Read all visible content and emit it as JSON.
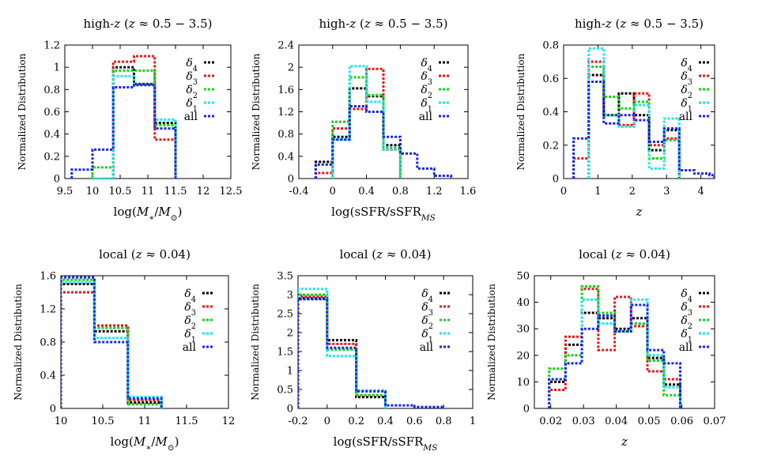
{
  "chart_data": [
    {
      "type": "histogram",
      "title": "high-z (z ≈ 0.5 − 3.5)",
      "xlabel": "log(M*/M⊙)",
      "ylabel": "Normalized Distribution",
      "xlim": [
        9.5,
        12.5
      ],
      "ylim": [
        0,
        1.2
      ],
      "xticks": [
        9.5,
        10,
        10.5,
        11,
        11.5,
        12,
        12.5
      ],
      "xtick_labels": [
        "9.5",
        "10",
        "10.5",
        "11",
        "11.5",
        "12",
        "12.5"
      ],
      "yticks": [
        0,
        0.2,
        0.4,
        0.6,
        0.8,
        1,
        1.2
      ],
      "ytick_labels": [
        "0",
        "0.2",
        "0.4",
        "0.6",
        "0.8",
        "1",
        "1.2"
      ],
      "series": [
        {
          "name": "δ4",
          "bins": [
            10.0,
            10.375,
            10.75,
            11.125,
            11.5
          ],
          "values": [
            0.0,
            1.0,
            0.85,
            0.5
          ]
        },
        {
          "name": "δ3",
          "bins": [
            10.0,
            10.375,
            10.75,
            11.125,
            11.5
          ],
          "values": [
            0.0,
            1.05,
            1.1,
            0.35
          ]
        },
        {
          "name": "δ2",
          "bins": [
            10.0,
            10.375,
            10.75,
            11.125,
            11.5
          ],
          "values": [
            0.1,
            0.97,
            0.97,
            0.48
          ]
        },
        {
          "name": "δ1",
          "bins": [
            10.0,
            10.375,
            10.75,
            11.125,
            11.5
          ],
          "values": [
            0.0,
            0.92,
            0.85,
            0.53
          ]
        },
        {
          "name": "all",
          "bins": [
            9.625,
            10.0,
            10.375,
            10.75,
            11.125,
            11.5
          ],
          "values": [
            0.08,
            0.26,
            0.82,
            0.84,
            0.45
          ]
        }
      ]
    },
    {
      "type": "histogram",
      "title": "high-z (z ≈ 0.5 − 3.5)",
      "xlabel": "log(sSFR/sSFR_MS)",
      "ylabel": "Normalized Distribution",
      "xlim": [
        -0.4,
        1.6
      ],
      "ylim": [
        0,
        2.4
      ],
      "xticks": [
        -0.4,
        0,
        0.4,
        0.8,
        1.2,
        1.6
      ],
      "xtick_labels": [
        "-0.4",
        "0",
        "0.4",
        "0.8",
        "1.2",
        "1.6"
      ],
      "yticks": [
        0,
        0.4,
        0.8,
        1.2,
        1.6,
        2,
        2.4
      ],
      "ytick_labels": [
        "0",
        "0.4",
        "0.8",
        "1.2",
        "1.6",
        "2",
        "2.4"
      ],
      "series": [
        {
          "name": "δ4",
          "bins": [
            -0.2,
            0,
            0.2,
            0.4,
            0.6,
            0.8
          ],
          "values": [
            0.3,
            0.75,
            1.62,
            1.48,
            0.6
          ]
        },
        {
          "name": "δ3",
          "bins": [
            -0.2,
            0,
            0.2,
            0.4,
            0.6,
            0.8
          ],
          "values": [
            0.1,
            0.9,
            1.25,
            1.97,
            0.52
          ]
        },
        {
          "name": "δ2",
          "bins": [
            0,
            0.2,
            0.4,
            0.6,
            0.8
          ],
          "values": [
            1.02,
            1.82,
            1.5,
            0.55
          ]
        },
        {
          "name": "δ1",
          "bins": [
            0,
            0.2,
            0.4,
            0.6,
            0.8
          ],
          "values": [
            0.7,
            2.02,
            1.38,
            0.52
          ]
        },
        {
          "name": "all",
          "bins": [
            -0.2,
            0,
            0.2,
            0.4,
            0.6,
            0.8,
            1.0,
            1.2,
            1.4
          ],
          "values": [
            0.25,
            0.7,
            1.3,
            1.2,
            0.75,
            0.45,
            0.18,
            0.05
          ]
        }
      ]
    },
    {
      "type": "histogram",
      "title": "high-z (z ≈ 0.5 − 3.5)",
      "xlabel": "z",
      "ylabel": "Normalized Distribution",
      "xlim": [
        0,
        4.4
      ],
      "ylim": [
        0,
        0.8
      ],
      "xticks": [
        0,
        1,
        2,
        3,
        4
      ],
      "xtick_labels": [
        "0",
        "1",
        "2",
        "3",
        "4"
      ],
      "yticks": [
        0,
        0.2,
        0.4,
        0.6,
        0.8
      ],
      "ytick_labels": [
        "0",
        "0.2",
        "0.4",
        "0.6",
        "0.8"
      ],
      "series": [
        {
          "name": "δ4",
          "bins": [
            0.73,
            1.17,
            1.61,
            2.05,
            2.49,
            2.93,
            3.37
          ],
          "values": [
            0.62,
            0.38,
            0.51,
            0.38,
            0.17,
            0.29
          ]
        },
        {
          "name": "δ3",
          "bins": [
            0.29,
            0.73,
            1.17,
            1.61,
            2.05,
            2.49,
            2.93,
            3.37
          ],
          "values": [
            0.12,
            0.7,
            0.38,
            0.32,
            0.51,
            0.2,
            0.24
          ]
        },
        {
          "name": "δ2",
          "bins": [
            0.73,
            1.17,
            1.61,
            2.05,
            2.49,
            2.93,
            3.37
          ],
          "values": [
            0.67,
            0.49,
            0.42,
            0.46,
            0.12,
            0.23
          ]
        },
        {
          "name": "δ1",
          "bins": [
            0.73,
            1.17,
            1.61,
            2.05,
            2.49,
            2.93,
            3.37
          ],
          "values": [
            0.78,
            0.38,
            0.31,
            0.44,
            0.06,
            0.36
          ]
        },
        {
          "name": "all",
          "bins": [
            0.29,
            0.73,
            1.17,
            1.61,
            2.05,
            2.49,
            2.93,
            3.37,
            3.81,
            4.25,
            4.4
          ],
          "values": [
            0.24,
            0.58,
            0.33,
            0.38,
            0.35,
            0.22,
            0.3,
            0.05,
            0.03,
            0.02
          ]
        }
      ]
    },
    {
      "type": "histogram",
      "title": "local (z ≈ 0.04)",
      "xlabel": "log(M*/M⊙)",
      "ylabel": "Normalized Distribution",
      "xlim": [
        10,
        12
      ],
      "ylim": [
        0,
        1.6
      ],
      "xticks": [
        10,
        10.5,
        11,
        11.5,
        12
      ],
      "xtick_labels": [
        "10",
        "10.5",
        "11",
        "11.5",
        "12"
      ],
      "yticks": [
        0,
        0.4,
        0.8,
        1.2,
        1.6
      ],
      "ytick_labels": [
        "0",
        "0.4",
        "0.8",
        "1.2",
        "1.6"
      ],
      "series": [
        {
          "name": "δ4",
          "bins": [
            10.0,
            10.4,
            10.8,
            11.2
          ],
          "values": [
            1.5,
            0.93,
            0.07
          ]
        },
        {
          "name": "δ3",
          "bins": [
            10.0,
            10.4,
            10.8,
            11.2
          ],
          "values": [
            1.4,
            1.0,
            0.1
          ]
        },
        {
          "name": "δ2",
          "bins": [
            10.0,
            10.4,
            10.8,
            11.2
          ],
          "values": [
            1.55,
            0.97,
            0.05
          ]
        },
        {
          "name": "δ1",
          "bins": [
            10.0,
            10.4,
            10.8,
            11.2
          ],
          "values": [
            1.52,
            0.85,
            0.14
          ]
        },
        {
          "name": "all",
          "bins": [
            10.0,
            10.4,
            10.8,
            11.2
          ],
          "values": [
            1.58,
            0.8,
            0.12
          ]
        }
      ]
    },
    {
      "type": "histogram",
      "title": "local (z ≈ 0.04)",
      "xlabel": "log(sSFR/sSFR_MS)",
      "ylabel": "Normalized Distribution",
      "xlim": [
        -0.2,
        1
      ],
      "ylim": [
        0,
        3.5
      ],
      "xticks": [
        -0.2,
        0,
        0.2,
        0.4,
        0.6,
        0.8,
        1
      ],
      "xtick_labels": [
        "-0.2",
        "0",
        "0.2",
        "0.4",
        "0.6",
        "0.8",
        "1"
      ],
      "yticks": [
        0,
        0.5,
        1,
        1.5,
        2,
        2.5,
        3,
        3.5
      ],
      "ytick_labels": [
        "0",
        "0.5",
        "1",
        "1.5",
        "2",
        "2.5",
        "3",
        "3.5"
      ],
      "series": [
        {
          "name": "δ4",
          "bins": [
            -0.2,
            0,
            0.2,
            0.4
          ],
          "values": [
            2.9,
            1.8,
            0.3
          ]
        },
        {
          "name": "δ3",
          "bins": [
            -0.2,
            0,
            0.2,
            0.4
          ],
          "values": [
            2.95,
            1.7,
            0.35
          ]
        },
        {
          "name": "δ2",
          "bins": [
            -0.2,
            0,
            0.2,
            0.4
          ],
          "values": [
            3.0,
            1.55,
            0.35
          ]
        },
        {
          "name": "δ1",
          "bins": [
            -0.2,
            0,
            0.2,
            0.4
          ],
          "values": [
            3.15,
            1.38,
            0.48
          ]
        },
        {
          "name": "all",
          "bins": [
            -0.2,
            0,
            0.2,
            0.4,
            0.6,
            0.8
          ],
          "values": [
            2.88,
            1.6,
            0.45,
            0.08,
            0.04
          ]
        }
      ]
    },
    {
      "type": "histogram",
      "title": "local (z ≈ 0.04)",
      "xlabel": "z",
      "ylabel": "Normalized Distribution",
      "xlim": [
        0.015,
        0.07
      ],
      "ylim": [
        0,
        50
      ],
      "xticks": [
        0.02,
        0.03,
        0.04,
        0.05,
        0.06,
        0.07
      ],
      "xtick_labels": [
        "0.02",
        "0.03",
        "0.04",
        "0.05",
        "0.06",
        "0.07"
      ],
      "yticks": [
        0,
        10,
        20,
        30,
        40,
        50
      ],
      "ytick_labels": [
        "0",
        "10",
        "20",
        "30",
        "40",
        "50"
      ],
      "series": [
        {
          "name": "δ4",
          "bins": [
            0.0195,
            0.0245,
            0.0295,
            0.0345,
            0.0395,
            0.0445,
            0.0495,
            0.0545,
            0.0595
          ],
          "values": [
            10,
            24,
            36,
            34,
            30,
            34,
            19,
            9
          ]
        },
        {
          "name": "δ3",
          "bins": [
            0.0195,
            0.0245,
            0.0295,
            0.0345,
            0.0395,
            0.0445,
            0.0495,
            0.0545,
            0.0595
          ],
          "values": [
            7,
            27,
            45,
            22,
            42,
            31,
            14,
            11
          ]
        },
        {
          "name": "δ2",
          "bins": [
            0.0195,
            0.0245,
            0.0295,
            0.0345,
            0.0395,
            0.0445,
            0.0495,
            0.0545,
            0.0595
          ],
          "values": [
            15,
            20,
            46,
            36,
            29,
            32,
            18,
            5
          ]
        },
        {
          "name": "δ1",
          "bins": [
            0.0195,
            0.0245,
            0.0295,
            0.0345,
            0.0395,
            0.0445,
            0.0495,
            0.0545,
            0.0595
          ],
          "values": [
            11,
            17,
            41,
            32,
            29,
            41,
            20,
            8
          ]
        },
        {
          "name": "all",
          "bins": [
            0.0195,
            0.0245,
            0.0295,
            0.0345,
            0.0395,
            0.0445,
            0.0495,
            0.0545,
            0.0595
          ],
          "values": [
            11,
            17,
            30,
            35,
            29,
            39,
            22,
            17
          ]
        }
      ]
    }
  ],
  "legend": [
    "δ4",
    "δ3",
    "δ2",
    "δ1",
    "all"
  ],
  "colors": {
    "δ4": "#000000",
    "δ3": "#e4191b",
    "δ2": "#1bd11b",
    "δ1": "#22e6e6",
    "all": "#1a26e8"
  }
}
